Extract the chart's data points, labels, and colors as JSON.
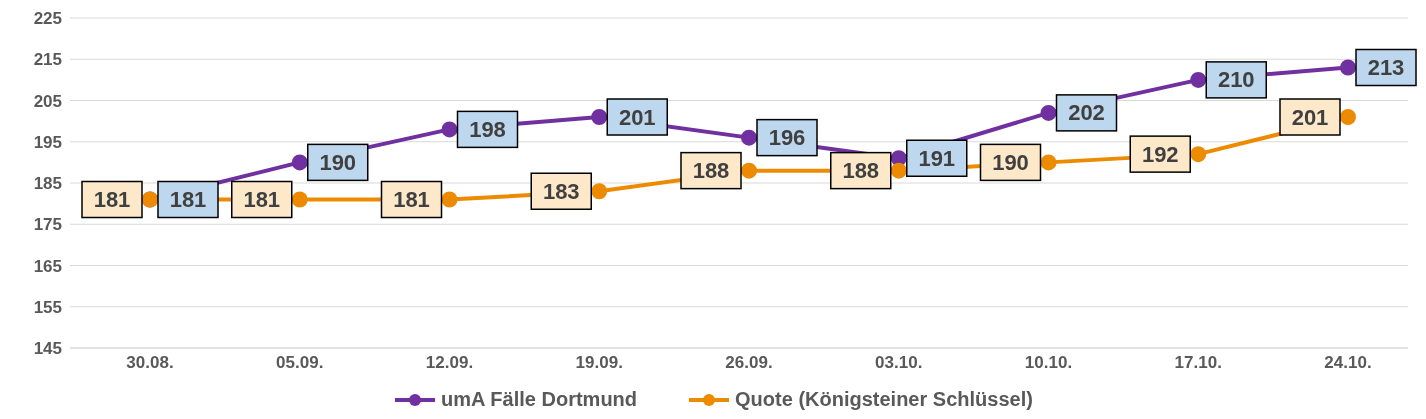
{
  "chart_data": {
    "type": "line",
    "categories": [
      "30.08.",
      "05.09.",
      "12.09.",
      "19.09.",
      "26.09.",
      "03.10.",
      "10.10.",
      "17.10.",
      "24.10."
    ],
    "series": [
      {
        "name": "umA Fälle Dortmund",
        "color": "#7030a0",
        "values": [
          181,
          190,
          198,
          201,
          196,
          191,
          202,
          210,
          213
        ]
      },
      {
        "name": "Quote (Königsteiner Schlüssel)",
        "color": "#ed8b00",
        "values": [
          181,
          181,
          181,
          183,
          188,
          188,
          190,
          192,
          201
        ]
      }
    ],
    "ylim": [
      145,
      225
    ],
    "yticks": [
      145,
      155,
      165,
      175,
      185,
      195,
      205,
      215,
      225
    ],
    "grid": "y",
    "legend": "bottom",
    "marker": "circle",
    "line_style": "solid",
    "data_labels": true
  }
}
